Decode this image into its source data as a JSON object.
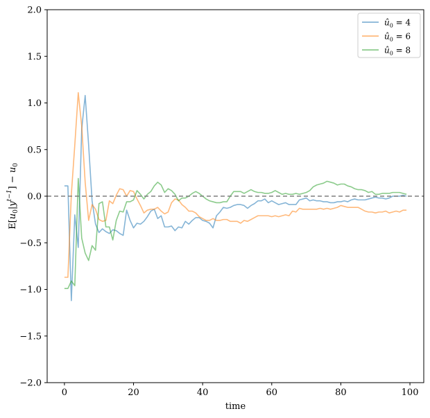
{
  "chart_data": {
    "type": "line",
    "xlabel": "time",
    "ylabel": "E[u0|y^{t-1}] − u0",
    "xlim": [
      -5,
      104
    ],
    "ylim": [
      -2.0,
      2.0
    ],
    "x_ticks": [
      0,
      20,
      40,
      60,
      80,
      100
    ],
    "x_tick_labels": [
      "0",
      "20",
      "40",
      "60",
      "80",
      "100"
    ],
    "y_ticks": [
      -2.0,
      -1.5,
      -1.0,
      -0.5,
      0.0,
      0.5,
      1.0,
      1.5,
      2.0
    ],
    "y_tick_labels": [
      "−2.0",
      "−1.5",
      "−1.0",
      "−0.5",
      "0.0",
      "0.5",
      "1.0",
      "1.5",
      "2.0"
    ],
    "reference_line": {
      "y": 0.0,
      "style": "dashed",
      "color": "#7f7f7f"
    },
    "legend_position": "top-right",
    "grid": false,
    "series": [
      {
        "name": "û0 = 4",
        "color": "#1f77b4",
        "x_start": 0,
        "values": [
          0.11,
          0.11,
          -1.12,
          -0.2,
          -0.55,
          0.72,
          1.08,
          0.55,
          -0.05,
          -0.3,
          -0.39,
          -0.35,
          -0.38,
          -0.4,
          -0.36,
          -0.37,
          -0.4,
          -0.42,
          -0.15,
          -0.26,
          -0.34,
          -0.29,
          -0.3,
          -0.27,
          -0.22,
          -0.16,
          -0.14,
          -0.24,
          -0.21,
          -0.33,
          -0.33,
          -0.32,
          -0.37,
          -0.33,
          -0.34,
          -0.27,
          -0.3,
          -0.26,
          -0.23,
          -0.23,
          -0.26,
          -0.27,
          -0.29,
          -0.34,
          -0.21,
          -0.17,
          -0.12,
          -0.13,
          -0.12,
          -0.1,
          -0.09,
          -0.09,
          -0.1,
          -0.13,
          -0.1,
          -0.08,
          -0.05,
          -0.05,
          -0.03,
          -0.07,
          -0.05,
          -0.07,
          -0.09,
          -0.08,
          -0.07,
          -0.09,
          -0.09,
          -0.09,
          -0.04,
          -0.03,
          -0.02,
          -0.05,
          -0.04,
          -0.05,
          -0.05,
          -0.06,
          -0.06,
          -0.07,
          -0.07,
          -0.06,
          -0.06,
          -0.05,
          -0.06,
          -0.04,
          -0.03,
          -0.04,
          -0.04,
          -0.04,
          -0.03,
          -0.02,
          -0.01,
          -0.02,
          -0.02,
          -0.03,
          -0.02,
          0.0,
          0.0,
          0.0,
          0.01,
          0.0
        ]
      },
      {
        "name": "û0 = 6",
        "color": "#ff7f0e",
        "x_start": 0,
        "values": [
          -0.87,
          -0.87,
          0.02,
          0.55,
          1.11,
          0.75,
          0.15,
          -0.26,
          -0.09,
          -0.14,
          -0.25,
          -0.27,
          -0.26,
          -0.05,
          -0.08,
          0.01,
          0.08,
          0.07,
          0.0,
          0.06,
          0.05,
          -0.03,
          -0.1,
          -0.18,
          -0.15,
          -0.14,
          -0.14,
          -0.12,
          -0.16,
          -0.19,
          -0.17,
          -0.07,
          -0.03,
          -0.04,
          -0.09,
          -0.12,
          -0.16,
          -0.16,
          -0.18,
          -0.22,
          -0.24,
          -0.26,
          -0.26,
          -0.24,
          -0.26,
          -0.26,
          -0.25,
          -0.25,
          -0.27,
          -0.27,
          -0.27,
          -0.29,
          -0.26,
          -0.27,
          -0.25,
          -0.23,
          -0.21,
          -0.21,
          -0.21,
          -0.21,
          -0.22,
          -0.21,
          -0.22,
          -0.21,
          -0.2,
          -0.21,
          -0.16,
          -0.17,
          -0.13,
          -0.14,
          -0.14,
          -0.14,
          -0.14,
          -0.14,
          -0.13,
          -0.14,
          -0.13,
          -0.14,
          -0.13,
          -0.12,
          -0.1,
          -0.11,
          -0.12,
          -0.12,
          -0.12,
          -0.12,
          -0.14,
          -0.16,
          -0.17,
          -0.17,
          -0.18,
          -0.17,
          -0.17,
          -0.16,
          -0.18,
          -0.17,
          -0.16,
          -0.17,
          -0.15,
          -0.15
        ]
      },
      {
        "name": "û0 = 8",
        "color": "#2ca02c",
        "x_start": 0,
        "values": [
          -0.99,
          -0.99,
          -0.91,
          -0.96,
          0.19,
          -0.45,
          -0.61,
          -0.69,
          -0.53,
          -0.58,
          -0.08,
          -0.06,
          -0.33,
          -0.33,
          -0.47,
          -0.26,
          -0.16,
          -0.17,
          -0.06,
          -0.06,
          -0.04,
          0.06,
          0.02,
          -0.03,
          0.02,
          0.05,
          0.11,
          0.15,
          0.12,
          0.04,
          0.08,
          0.06,
          0.02,
          -0.05,
          -0.02,
          -0.02,
          0.0,
          0.03,
          0.05,
          0.03,
          0.0,
          -0.03,
          -0.05,
          -0.06,
          -0.07,
          -0.07,
          -0.06,
          -0.06,
          0.0,
          0.05,
          0.05,
          0.05,
          0.03,
          0.05,
          0.07,
          0.05,
          0.04,
          0.04,
          0.03,
          0.03,
          0.04,
          0.06,
          0.04,
          0.02,
          0.03,
          0.02,
          0.02,
          0.03,
          0.02,
          0.03,
          0.04,
          0.06,
          0.1,
          0.12,
          0.13,
          0.14,
          0.16,
          0.15,
          0.14,
          0.12,
          0.13,
          0.13,
          0.11,
          0.1,
          0.08,
          0.07,
          0.07,
          0.06,
          0.04,
          0.05,
          0.02,
          0.02,
          0.03,
          0.03,
          0.03,
          0.04,
          0.04,
          0.04,
          0.03,
          0.02
        ]
      }
    ]
  }
}
